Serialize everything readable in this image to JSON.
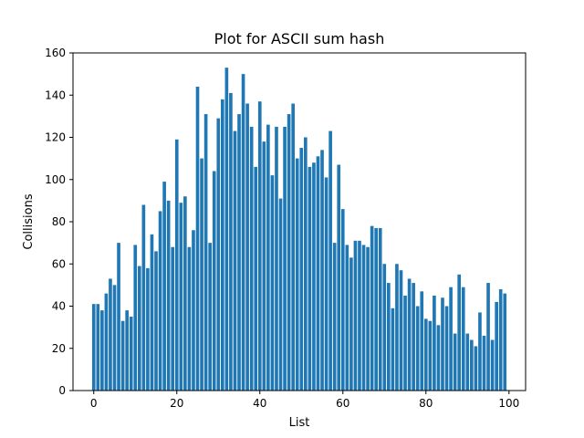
{
  "chart_data": {
    "type": "bar",
    "title": "Plot for ASCII sum hash",
    "xlabel": "List",
    "ylabel": "Collisions",
    "xlim": [
      -5,
      104
    ],
    "ylim": [
      0,
      160
    ],
    "xticks": [
      0,
      20,
      40,
      60,
      80,
      100
    ],
    "yticks": [
      0,
      20,
      40,
      60,
      80,
      100,
      120,
      140,
      160
    ],
    "bar_color": "#1f77b4",
    "grid": false,
    "x": [
      0,
      1,
      2,
      3,
      4,
      5,
      6,
      7,
      8,
      9,
      10,
      11,
      12,
      13,
      14,
      15,
      16,
      17,
      18,
      19,
      20,
      21,
      22,
      23,
      24,
      25,
      26,
      27,
      28,
      29,
      30,
      31,
      32,
      33,
      34,
      35,
      36,
      37,
      38,
      39,
      40,
      41,
      42,
      43,
      44,
      45,
      46,
      47,
      48,
      49,
      50,
      51,
      52,
      53,
      54,
      55,
      56,
      57,
      58,
      59,
      60,
      61,
      62,
      63,
      64,
      65,
      66,
      67,
      68,
      69,
      70,
      71,
      72,
      73,
      74,
      75,
      76,
      77,
      78,
      79,
      80,
      81,
      82,
      83,
      84,
      85,
      86,
      87,
      88,
      89,
      90,
      91,
      92,
      93,
      94,
      95,
      96,
      97,
      98,
      99
    ],
    "values": [
      41,
      41,
      38,
      46,
      53,
      50,
      70,
      33,
      38,
      35,
      69,
      59,
      88,
      58,
      74,
      66,
      85,
      99,
      90,
      68,
      119,
      89,
      92,
      68,
      76,
      144,
      110,
      131,
      70,
      104,
      129,
      138,
      153,
      141,
      123,
      131,
      150,
      136,
      125,
      106,
      137,
      118,
      126,
      102,
      125,
      91,
      125,
      131,
      136,
      110,
      115,
      120,
      106,
      108,
      111,
      114,
      101,
      123,
      70,
      107,
      86,
      69,
      63,
      71,
      71,
      69,
      68,
      78,
      77,
      77,
      60,
      51,
      39,
      60,
      57,
      45,
      53,
      51,
      40,
      47,
      34,
      33,
      45,
      31,
      44,
      40,
      49,
      27,
      55,
      49,
      27,
      24,
      21,
      37,
      26,
      51,
      24,
      42,
      48,
      46
    ]
  }
}
